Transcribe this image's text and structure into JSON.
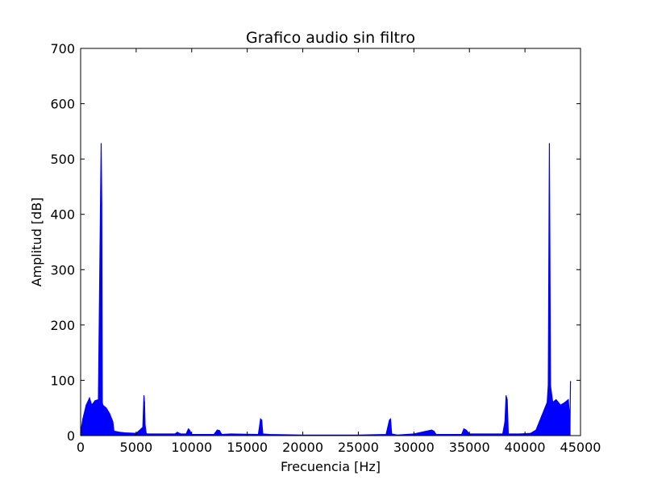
{
  "chart_data": {
    "type": "line",
    "title": "Grafico audio sin filtro",
    "xlabel": "Frecuencia [Hz]",
    "ylabel": "Amplitud [dB]",
    "xlim": [
      0,
      45000
    ],
    "ylim": [
      0,
      700
    ],
    "xticks": [
      0,
      5000,
      10000,
      15000,
      20000,
      25000,
      30000,
      35000,
      40000,
      45000
    ],
    "yticks": [
      0,
      100,
      200,
      300,
      400,
      500,
      600,
      700
    ],
    "grid": false,
    "line_color": "#0000ff",
    "series": [
      {
        "name": "",
        "x": [
          0,
          200,
          500,
          800,
          1000,
          1300,
          1600,
          1800,
          1850,
          1900,
          1950,
          2000,
          2300,
          2600,
          2900,
          3000,
          3500,
          4000,
          5000,
          5600,
          5700,
          5750,
          5800,
          5900,
          6000,
          7000,
          8500,
          8700,
          9000,
          9500,
          9700,
          9800,
          10000,
          12000,
          12300,
          12500,
          12700,
          13500,
          16000,
          16200,
          16300,
          16400,
          17000,
          20000,
          25000,
          27500,
          27800,
          27900,
          28000,
          28500,
          30000,
          31600,
          31800,
          32000,
          34300,
          34500,
          34700,
          35000,
          38000,
          38200,
          38300,
          38400,
          38500,
          39500,
          40500,
          41000,
          41500,
          41800,
          42000,
          42100,
          42200,
          42300,
          42500,
          42800,
          43200,
          43600,
          43900,
          44000,
          44050,
          44100
        ],
        "values": [
          5,
          30,
          55,
          68,
          55,
          63,
          65,
          440,
          528,
          420,
          60,
          55,
          50,
          40,
          25,
          8,
          6,
          5,
          4,
          15,
          72,
          60,
          20,
          4,
          3,
          3,
          3,
          6,
          3,
          3,
          12,
          10,
          2,
          2,
          10,
          9,
          2,
          3,
          2,
          30,
          28,
          3,
          2,
          1,
          1,
          2,
          28,
          30,
          3,
          1,
          3,
          10,
          8,
          2,
          2,
          12,
          10,
          3,
          3,
          25,
          72,
          65,
          3,
          3,
          4,
          10,
          35,
          50,
          60,
          92,
          528,
          90,
          60,
          65,
          55,
          60,
          65,
          40,
          20,
          98
        ]
      }
    ]
  }
}
